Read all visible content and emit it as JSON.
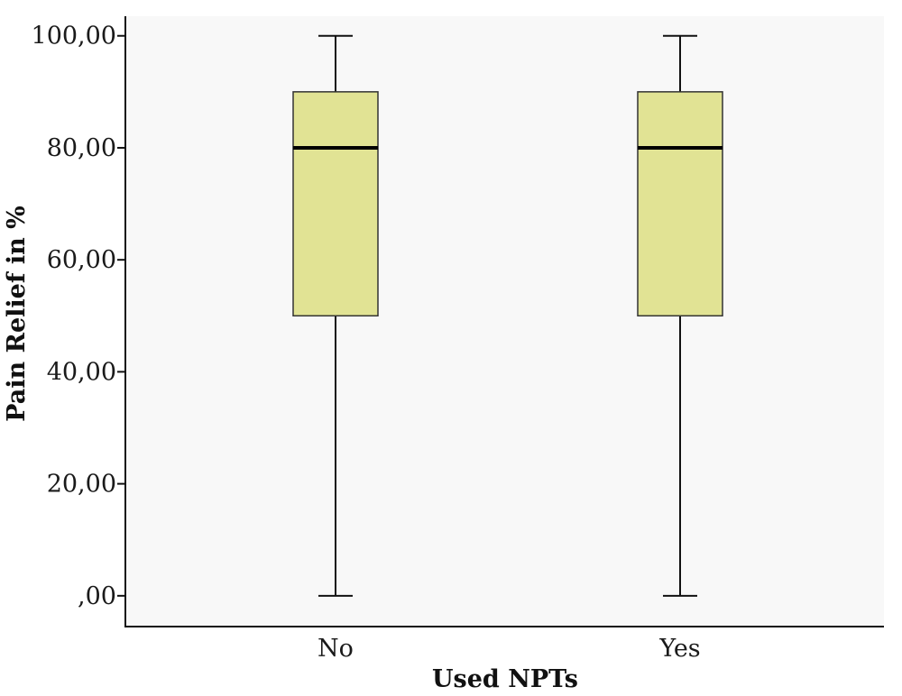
{
  "chart_data": {
    "type": "boxplot",
    "xlabel": "Used NPTs",
    "ylabel": "Pain Relief in %",
    "categories": [
      "No",
      "Yes"
    ],
    "boxes": [
      {
        "category": "No",
        "min": 0,
        "q1": 50,
        "median": 80,
        "q3": 90,
        "max": 100
      },
      {
        "category": "Yes",
        "min": 0,
        "q1": 50,
        "median": 80,
        "q3": 90,
        "max": 100
      }
    ],
    "ylim": [
      -5.5,
      103.5
    ],
    "yticks": [
      0,
      20,
      40,
      60,
      80,
      100
    ],
    "ytick_labels": [
      ",00",
      "20,00",
      "40,00",
      "60,00",
      "80,00",
      "100,00"
    ],
    "grid": false,
    "colors": {
      "box_fill": "#e1e394",
      "box_edge": "#333333",
      "median": "#000000",
      "whisker": "#111111",
      "plot_background": "#f8f8f8"
    }
  }
}
